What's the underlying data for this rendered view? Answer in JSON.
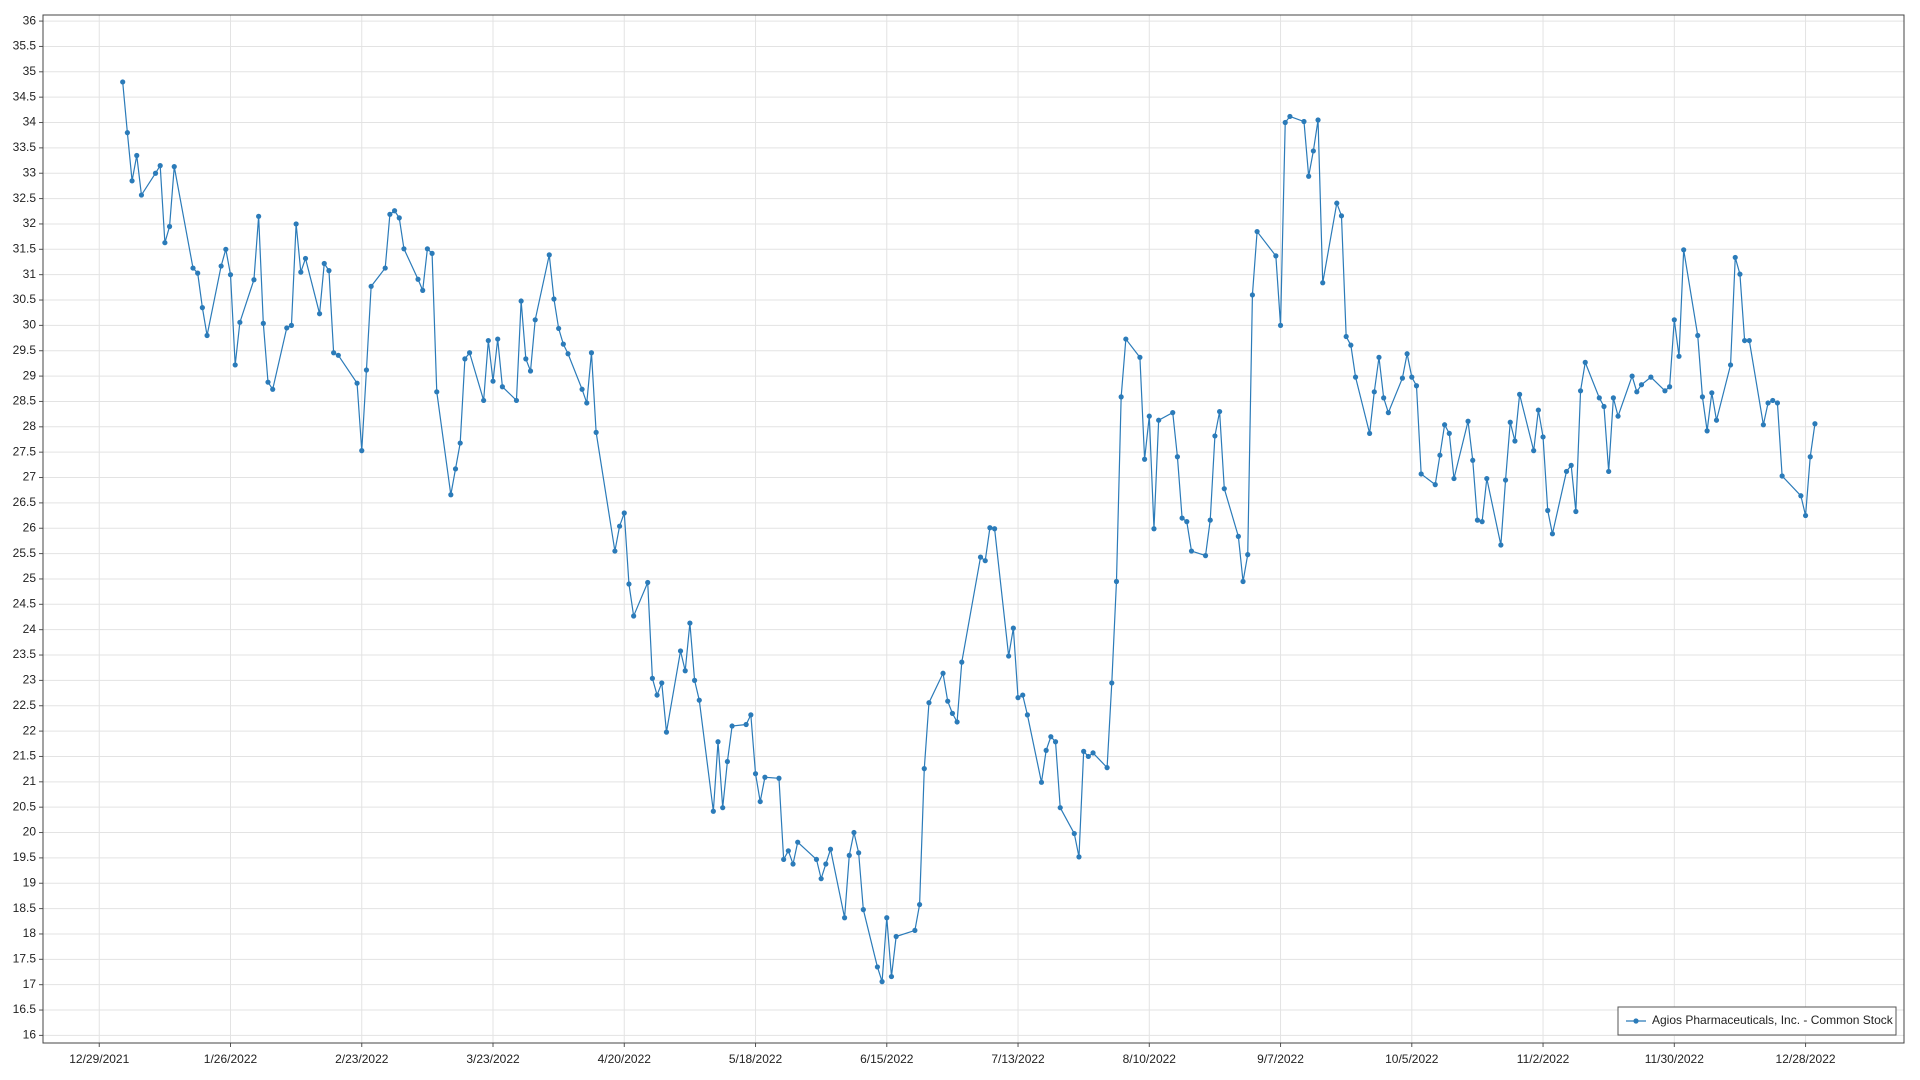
{
  "chart_data": {
    "type": "line",
    "x": [
      "1/3/2022",
      "1/4/2022",
      "1/5/2022",
      "1/6/2022",
      "1/7/2022",
      "1/10/2022",
      "1/11/2022",
      "1/12/2022",
      "1/13/2022",
      "1/14/2022",
      "1/18/2022",
      "1/19/2022",
      "1/20/2022",
      "1/21/2022",
      "1/24/2022",
      "1/25/2022",
      "1/26/2022",
      "1/27/2022",
      "1/28/2022",
      "1/31/2022",
      "2/1/2022",
      "2/2/2022",
      "2/3/2022",
      "2/4/2022",
      "2/7/2022",
      "2/8/2022",
      "2/9/2022",
      "2/10/2022",
      "2/11/2022",
      "2/14/2022",
      "2/15/2022",
      "2/16/2022",
      "2/17/2022",
      "2/18/2022",
      "2/22/2022",
      "2/23/2022",
      "2/24/2022",
      "2/25/2022",
      "2/28/2022",
      "3/1/2022",
      "3/2/2022",
      "3/3/2022",
      "3/4/2022",
      "3/7/2022",
      "3/8/2022",
      "3/9/2022",
      "3/10/2022",
      "3/11/2022",
      "3/14/2022",
      "3/15/2022",
      "3/16/2022",
      "3/17/2022",
      "3/18/2022",
      "3/21/2022",
      "3/22/2022",
      "3/23/2022",
      "3/24/2022",
      "3/25/2022",
      "3/28/2022",
      "3/29/2022",
      "3/30/2022",
      "3/31/2022",
      "4/1/2022",
      "4/4/2022",
      "4/5/2022",
      "4/6/2022",
      "4/7/2022",
      "4/8/2022",
      "4/11/2022",
      "4/12/2022",
      "4/13/2022",
      "4/14/2022",
      "4/18/2022",
      "4/19/2022",
      "4/20/2022",
      "4/21/2022",
      "4/22/2022",
      "4/25/2022",
      "4/26/2022",
      "4/27/2022",
      "4/28/2022",
      "4/29/2022",
      "5/2/2022",
      "5/3/2022",
      "5/4/2022",
      "5/5/2022",
      "5/6/2022",
      "5/9/2022",
      "5/10/2022",
      "5/11/2022",
      "5/12/2022",
      "5/13/2022",
      "5/16/2022",
      "5/17/2022",
      "5/18/2022",
      "5/19/2022",
      "5/20/2022",
      "5/23/2022",
      "5/24/2022",
      "5/25/2022",
      "5/26/2022",
      "5/27/2022",
      "5/31/2022",
      "6/1/2022",
      "6/2/2022",
      "6/3/2022",
      "6/6/2022",
      "6/7/2022",
      "6/8/2022",
      "6/9/2022",
      "6/10/2022",
      "6/13/2022",
      "6/14/2022",
      "6/15/2022",
      "6/16/2022",
      "6/17/2022",
      "6/21/2022",
      "6/22/2022",
      "6/23/2022",
      "6/24/2022",
      "6/27/2022",
      "6/28/2022",
      "6/29/2022",
      "6/30/2022",
      "7/1/2022",
      "7/5/2022",
      "7/6/2022",
      "7/7/2022",
      "7/8/2022",
      "7/11/2022",
      "7/12/2022",
      "7/13/2022",
      "7/14/2022",
      "7/15/2022",
      "7/18/2022",
      "7/19/2022",
      "7/20/2022",
      "7/21/2022",
      "7/22/2022",
      "7/25/2022",
      "7/26/2022",
      "7/27/2022",
      "7/28/2022",
      "7/29/2022",
      "8/1/2022",
      "8/2/2022",
      "8/3/2022",
      "8/4/2022",
      "8/5/2022",
      "8/8/2022",
      "8/9/2022",
      "8/10/2022",
      "8/11/2022",
      "8/12/2022",
      "8/15/2022",
      "8/16/2022",
      "8/17/2022",
      "8/18/2022",
      "8/19/2022",
      "8/22/2022",
      "8/23/2022",
      "8/24/2022",
      "8/25/2022",
      "8/26/2022",
      "8/29/2022",
      "8/30/2022",
      "8/31/2022",
      "9/1/2022",
      "9/2/2022",
      "9/6/2022",
      "9/7/2022",
      "9/8/2022",
      "9/9/2022",
      "9/12/2022",
      "9/13/2022",
      "9/14/2022",
      "9/15/2022",
      "9/16/2022",
      "9/19/2022",
      "9/20/2022",
      "9/21/2022",
      "9/22/2022",
      "9/23/2022",
      "9/26/2022",
      "9/27/2022",
      "9/28/2022",
      "9/29/2022",
      "9/30/2022",
      "10/3/2022",
      "10/4/2022",
      "10/5/2022",
      "10/6/2022",
      "10/7/2022",
      "10/10/2022",
      "10/11/2022",
      "10/12/2022",
      "10/13/2022",
      "10/14/2022",
      "10/17/2022",
      "10/18/2022",
      "10/19/2022",
      "10/20/2022",
      "10/21/2022",
      "10/24/2022",
      "10/25/2022",
      "10/26/2022",
      "10/27/2022",
      "10/28/2022",
      "10/31/2022",
      "11/1/2022",
      "11/2/2022",
      "11/3/2022",
      "11/4/2022",
      "11/7/2022",
      "11/8/2022",
      "11/9/2022",
      "11/10/2022",
      "11/11/2022",
      "11/14/2022",
      "11/15/2022",
      "11/16/2022",
      "11/17/2022",
      "11/18/2022",
      "11/21/2022",
      "11/22/2022",
      "11/23/2022",
      "11/25/2022",
      "11/28/2022",
      "11/29/2022",
      "11/30/2022",
      "12/1/2022",
      "12/2/2022",
      "12/5/2022",
      "12/6/2022",
      "12/7/2022",
      "12/8/2022",
      "12/9/2022",
      "12/12/2022",
      "12/13/2022",
      "12/14/2022",
      "12/15/2022",
      "12/16/2022",
      "12/19/2022",
      "12/20/2022",
      "12/21/2022",
      "12/22/2022",
      "12/23/2022",
      "12/27/2022",
      "12/28/2022",
      "12/29/2022",
      "12/30/2022"
    ],
    "series": [
      {
        "name": "Agios Pharmaceuticals, Inc. - Common Stock",
        "color": "#2b7bb9",
        "values": [
          34.8,
          33.8,
          32.85,
          33.35,
          32.57,
          33.0,
          33.15,
          31.63,
          31.95,
          33.13,
          31.13,
          31.03,
          30.35,
          29.8,
          31.17,
          31.5,
          31.0,
          29.22,
          30.06,
          30.9,
          32.15,
          30.04,
          28.88,
          28.74,
          29.95,
          30.0,
          32.0,
          31.05,
          31.32,
          30.23,
          31.22,
          31.08,
          29.46,
          29.41,
          28.86,
          27.53,
          29.12,
          30.77,
          31.13,
          32.19,
          32.26,
          32.12,
          31.51,
          30.91,
          30.69,
          31.51,
          31.42,
          28.69,
          26.66,
          27.17,
          27.68,
          29.34,
          29.46,
          28.52,
          29.7,
          28.9,
          29.73,
          28.79,
          28.52,
          30.48,
          29.34,
          29.1,
          30.11,
          31.39,
          30.52,
          29.94,
          29.63,
          29.44,
          28.74,
          28.47,
          29.46,
          27.89,
          25.55,
          26.04,
          26.3,
          24.9,
          24.27,
          24.93,
          23.04,
          22.71,
          22.95,
          21.98,
          23.58,
          23.19,
          24.13,
          23.0,
          22.61,
          20.42,
          21.79,
          20.49,
          21.4,
          22.1,
          22.13,
          22.32,
          21.16,
          20.61,
          21.09,
          21.07,
          19.47,
          19.64,
          19.38,
          19.81,
          19.47,
          19.09,
          19.38,
          19.67,
          18.32,
          19.55,
          20.0,
          19.6,
          18.48,
          17.35,
          17.06,
          18.32,
          17.16,
          17.95,
          18.07,
          18.58,
          21.26,
          22.56,
          23.14,
          22.59,
          22.35,
          22.18,
          23.36,
          25.43,
          25.36,
          26.01,
          25.99,
          23.48,
          24.03,
          22.66,
          22.71,
          22.32,
          20.99,
          21.62,
          21.89,
          21.79,
          20.49,
          19.98,
          19.52,
          21.6,
          21.5,
          21.57,
          21.28,
          22.95,
          24.95,
          28.59,
          29.73,
          29.37,
          27.36,
          28.21,
          25.99,
          28.13,
          28.28,
          27.41,
          26.2,
          26.13,
          25.55,
          25.46,
          26.16,
          27.82,
          28.3,
          26.78,
          25.84,
          24.95,
          25.48,
          30.6,
          31.85,
          31.37,
          30.0,
          34.0,
          34.12,
          34.02,
          32.94,
          33.44,
          34.05,
          30.84,
          32.41,
          32.16,
          29.78,
          29.61,
          28.98,
          27.87,
          28.69,
          29.37,
          28.57,
          28.28,
          28.96,
          29.44,
          28.98,
          28.81,
          27.07,
          26.86,
          27.44,
          28.04,
          27.87,
          26.98,
          28.11,
          27.34,
          26.16,
          26.13,
          26.98,
          25.67,
          26.95,
          28.09,
          27.72,
          28.64,
          27.53,
          28.33,
          27.8,
          26.35,
          25.89,
          27.12,
          27.24,
          26.33,
          28.71,
          29.27,
          28.57,
          28.4,
          27.12,
          28.57,
          28.21,
          29.0,
          28.69,
          28.83,
          28.98,
          28.71,
          28.79,
          30.11,
          29.39,
          31.49,
          29.8,
          28.59,
          27.92,
          28.67,
          28.13,
          29.22,
          31.34,
          31.01,
          29.7,
          29.7,
          28.04,
          28.47,
          28.52,
          28.47,
          27.03,
          26.64,
          26.25,
          27.41,
          28.06
        ]
      }
    ],
    "xlim": [
      "12/17/2021",
      "1/18/2023"
    ],
    "xticks": [
      "12/29/2021",
      "1/26/2022",
      "2/23/2022",
      "3/23/2022",
      "4/20/2022",
      "5/18/2022",
      "6/15/2022",
      "7/13/2022",
      "8/10/2022",
      "9/7/2022",
      "10/5/2022",
      "11/2/2022",
      "11/30/2022",
      "12/28/2022"
    ],
    "ylim": [
      15.85,
      36.12
    ],
    "yticks": [
      16,
      16.5,
      17,
      17.5,
      18,
      18.5,
      19,
      19.5,
      20,
      20.5,
      21,
      21.5,
      22,
      22.5,
      23,
      23.5,
      24,
      24.5,
      25,
      25.5,
      26,
      26.5,
      27,
      27.5,
      28,
      28.5,
      29,
      29.5,
      30,
      30.5,
      31,
      31.5,
      32,
      32.5,
      33,
      33.5,
      34,
      34.5,
      35,
      35.5,
      36
    ],
    "grid": true,
    "legend": "lower-right"
  }
}
